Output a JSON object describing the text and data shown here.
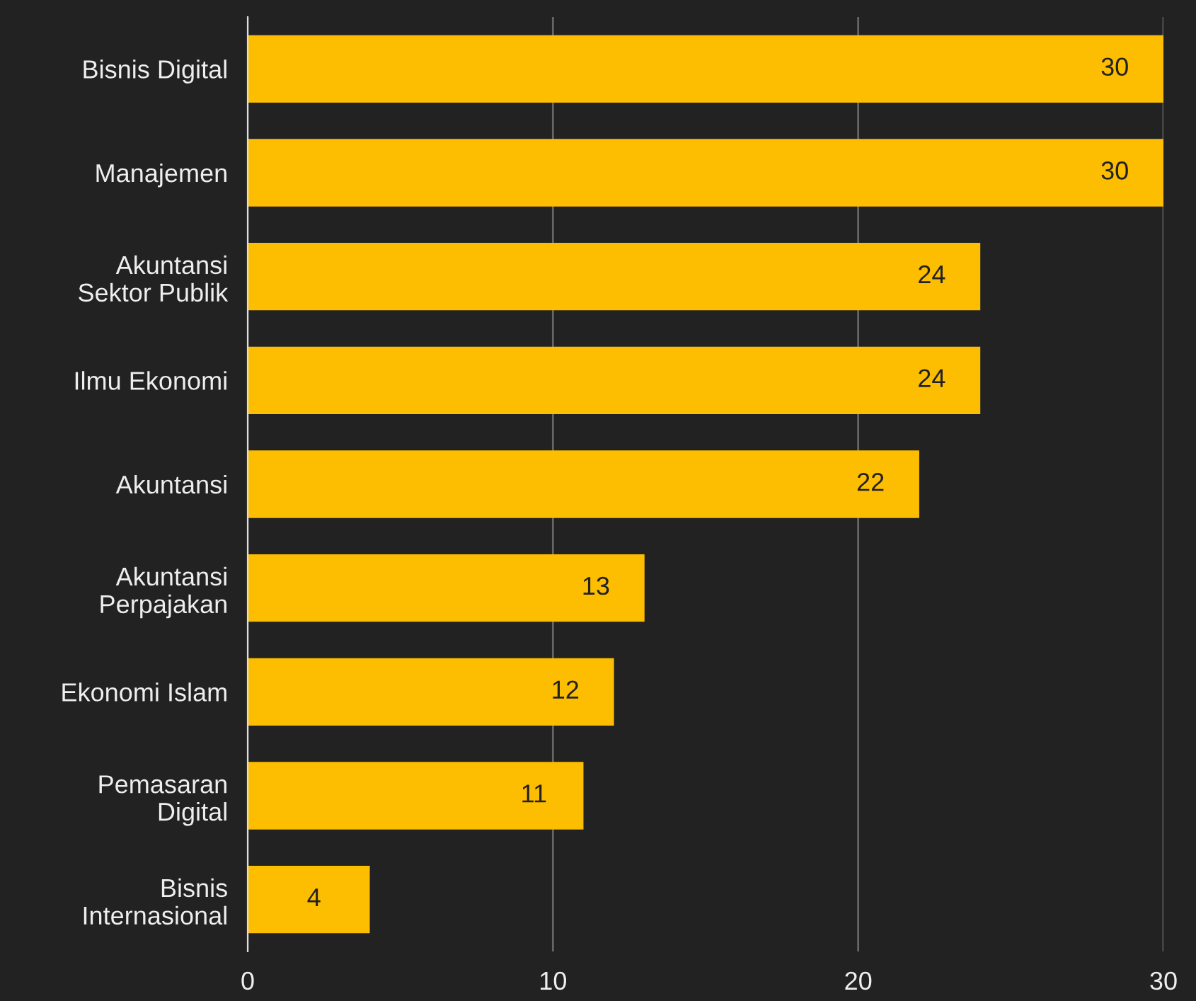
{
  "chart_data": {
    "type": "bar",
    "orientation": "horizontal",
    "categories": [
      "Bisnis Digital",
      "Manajemen",
      "Akuntansi\nSektor Publik",
      "Ilmu Ekonomi",
      "Akuntansi",
      "Akuntansi\nPerpajakan",
      "Ekonomi Islam",
      "Pemasaran\nDigital",
      "Bisnis\nInternasional"
    ],
    "values": [
      30,
      30,
      24,
      24,
      22,
      13,
      12,
      11,
      4
    ],
    "color": "#fdbd00",
    "xlim": [
      0,
      30
    ],
    "xticks": [
      0,
      10,
      20,
      30
    ],
    "grid": "x",
    "data_labels": true
  }
}
